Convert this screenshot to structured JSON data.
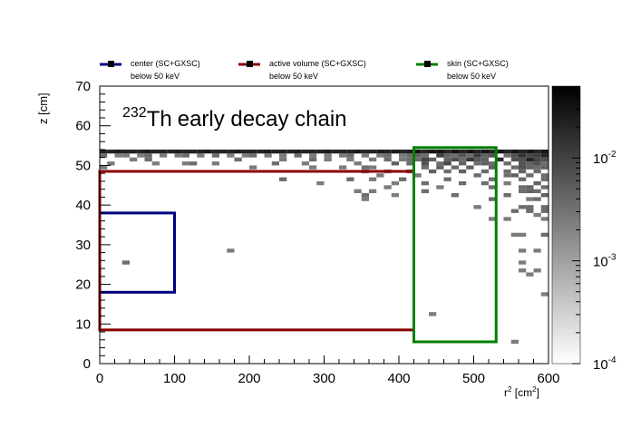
{
  "chart_data": {
    "type": "heatmap",
    "title": "early decay chain",
    "title_superscript": "232",
    "title_element": "Th",
    "xlabel": {
      "base": "r",
      "sup1": "2",
      "mid": " [cm",
      "sup2": "2",
      "end": "]"
    },
    "ylabel": "z [cm]",
    "xlim": [
      0,
      600
    ],
    "ylim": [
      0,
      70
    ],
    "x_ticks": [
      0,
      100,
      200,
      300,
      400,
      500,
      600
    ],
    "y_ticks": [
      0,
      10,
      20,
      30,
      40,
      50,
      60,
      70
    ],
    "colorbar": {
      "scale": "log",
      "range": [
        0.0001,
        0.05
      ],
      "ticks": [
        {
          "value": 0.01,
          "base": "10",
          "exp": "-2"
        },
        {
          "value": 0.001,
          "base": "10",
          "exp": "-3"
        },
        {
          "value": 0.0001,
          "base": "10",
          "exp": "-4"
        }
      ],
      "colormap": [
        "#ffffff",
        "#000000"
      ]
    },
    "legend": {
      "placement": "top",
      "entries": [
        {
          "name": "center (SC+GXSC)",
          "sub": "below 50 keV",
          "color": "#000080"
        },
        {
          "name": "active volume (SC+GXSC)",
          "sub": "below 50 keV",
          "color": "#8b0000"
        },
        {
          "name": "skin (SC+GXSC)",
          "sub": "below 50 keV",
          "color": "#008000"
        }
      ]
    },
    "regions": [
      {
        "name": "center (SC+GXSC)",
        "color": "#000080",
        "r2": [
          0,
          100
        ],
        "z": [
          18,
          38
        ]
      },
      {
        "name": "active volume (SC+GXSC)",
        "color": "#8b0000",
        "r2": [
          0,
          420
        ],
        "z": [
          8.5,
          48.5
        ]
      },
      {
        "name": "skin (SC+GXSC)",
        "color": "#008000",
        "r2": [
          420,
          530
        ],
        "z": [
          5.5,
          54.5
        ]
      }
    ],
    "bin_size": {
      "r2": 10,
      "z": 1
    },
    "bins": [
      [
        0,
        53,
        0.02
      ],
      [
        10,
        53,
        0.02
      ],
      [
        20,
        53,
        0.025
      ],
      [
        30,
        53,
        0.02
      ],
      [
        40,
        53,
        0.02
      ],
      [
        50,
        53,
        0.02
      ],
      [
        60,
        53,
        0.025
      ],
      [
        70,
        53,
        0.02
      ],
      [
        80,
        53,
        0.02
      ],
      [
        90,
        53,
        0.02
      ],
      [
        100,
        53,
        0.025
      ],
      [
        110,
        53,
        0.02
      ],
      [
        120,
        53,
        0.02
      ],
      [
        130,
        53,
        0.02
      ],
      [
        140,
        53,
        0.025
      ],
      [
        150,
        53,
        0.02
      ],
      [
        160,
        53,
        0.02
      ],
      [
        170,
        53,
        0.02
      ],
      [
        180,
        53,
        0.025
      ],
      [
        190,
        53,
        0.02
      ],
      [
        200,
        53,
        0.02
      ],
      [
        210,
        53,
        0.02
      ],
      [
        220,
        53,
        0.025
      ],
      [
        230,
        53,
        0.02
      ],
      [
        240,
        53,
        0.02
      ],
      [
        250,
        53,
        0.02
      ],
      [
        260,
        53,
        0.025
      ],
      [
        270,
        53,
        0.02
      ],
      [
        280,
        53,
        0.02
      ],
      [
        290,
        53,
        0.02
      ],
      [
        300,
        53,
        0.025
      ],
      [
        310,
        53,
        0.02
      ],
      [
        320,
        53,
        0.02
      ],
      [
        330,
        53,
        0.02
      ],
      [
        340,
        53,
        0.025
      ],
      [
        350,
        53,
        0.02
      ],
      [
        360,
        53,
        0.02
      ],
      [
        370,
        53,
        0.025
      ],
      [
        380,
        53,
        0.02
      ],
      [
        390,
        53,
        0.025
      ],
      [
        400,
        53,
        0.02
      ],
      [
        410,
        53,
        0.025
      ],
      [
        420,
        53,
        0.03
      ],
      [
        430,
        53,
        0.02
      ],
      [
        440,
        53,
        0.03
      ],
      [
        450,
        53,
        0.03
      ],
      [
        460,
        53,
        0.02
      ],
      [
        470,
        53,
        0.03
      ],
      [
        480,
        53,
        0.02
      ],
      [
        490,
        53,
        0.03
      ],
      [
        500,
        53,
        0.02
      ],
      [
        510,
        53,
        0.03
      ],
      [
        520,
        53,
        0.02
      ],
      [
        530,
        53,
        0.03
      ],
      [
        540,
        53,
        0.02
      ],
      [
        550,
        53,
        0.03
      ],
      [
        560,
        53,
        0.02
      ],
      [
        570,
        53,
        0.03
      ],
      [
        580,
        53,
        0.02
      ],
      [
        590,
        53,
        0.03
      ],
      [
        0,
        52,
        0.003
      ],
      [
        20,
        52,
        0.002
      ],
      [
        30,
        52,
        0.002
      ],
      [
        50,
        52,
        0.002
      ],
      [
        60,
        52,
        0.003
      ],
      [
        80,
        52,
        0.002
      ],
      [
        100,
        52,
        0.002
      ],
      [
        110,
        52,
        0.003
      ],
      [
        130,
        52,
        0.002
      ],
      [
        150,
        52,
        0.003
      ],
      [
        170,
        52,
        0.002
      ],
      [
        190,
        52,
        0.002
      ],
      [
        200,
        52,
        0.003
      ],
      [
        220,
        52,
        0.002
      ],
      [
        240,
        52,
        0.002
      ],
      [
        260,
        52,
        0.003
      ],
      [
        280,
        52,
        0.002
      ],
      [
        300,
        52,
        0.002
      ],
      [
        320,
        52,
        0.002
      ],
      [
        330,
        52,
        0.003
      ],
      [
        350,
        52,
        0.002
      ],
      [
        370,
        52,
        0.002
      ],
      [
        380,
        52,
        0.003
      ],
      [
        400,
        52,
        0.002
      ],
      [
        410,
        52,
        0.003
      ],
      [
        420,
        52,
        0.004
      ],
      [
        430,
        52,
        0.003
      ],
      [
        450,
        52,
        0.01
      ],
      [
        460,
        52,
        0.004
      ],
      [
        470,
        52,
        0.003
      ],
      [
        480,
        52,
        0.006
      ],
      [
        490,
        52,
        0.003
      ],
      [
        500,
        52,
        0.01
      ],
      [
        510,
        52,
        0.004
      ],
      [
        520,
        52,
        0.006
      ],
      [
        540,
        52,
        0.003
      ],
      [
        550,
        52,
        0.006
      ],
      [
        560,
        52,
        0.015
      ],
      [
        570,
        52,
        0.008
      ],
      [
        580,
        52,
        0.01
      ],
      [
        590,
        52,
        0.02
      ],
      [
        40,
        51,
        0.002
      ],
      [
        60,
        51,
        0.003
      ],
      [
        180,
        51,
        0.003
      ],
      [
        240,
        51,
        0.002
      ],
      [
        280,
        51,
        0.003
      ],
      [
        300,
        51,
        0.002
      ],
      [
        330,
        51,
        0.002
      ],
      [
        360,
        51,
        0.002
      ],
      [
        380,
        51,
        0.003
      ],
      [
        400,
        51,
        0.002
      ],
      [
        410,
        51,
        0.003
      ],
      [
        420,
        51,
        0.003
      ],
      [
        430,
        51,
        0.008
      ],
      [
        440,
        51,
        0.004
      ],
      [
        460,
        51,
        0.004
      ],
      [
        470,
        51,
        0.006
      ],
      [
        480,
        51,
        0.003
      ],
      [
        490,
        51,
        0.012
      ],
      [
        500,
        51,
        0.005
      ],
      [
        510,
        51,
        0.004
      ],
      [
        530,
        51,
        0.015
      ],
      [
        550,
        51,
        0.006
      ],
      [
        560,
        51,
        0.006
      ],
      [
        570,
        51,
        0.02
      ],
      [
        580,
        51,
        0.008
      ],
      [
        590,
        51,
        0.006
      ],
      [
        10,
        50,
        0.002
      ],
      [
        70,
        50,
        0.002
      ],
      [
        110,
        50,
        0.002
      ],
      [
        120,
        50,
        0.003
      ],
      [
        150,
        50,
        0.002
      ],
      [
        230,
        50,
        0.003
      ],
      [
        270,
        50,
        0.002
      ],
      [
        340,
        50,
        0.002
      ],
      [
        390,
        50,
        0.004
      ],
      [
        410,
        50,
        0.003
      ],
      [
        430,
        50,
        0.006
      ],
      [
        450,
        50,
        0.003
      ],
      [
        460,
        50,
        0.008
      ],
      [
        480,
        50,
        0.004
      ],
      [
        500,
        50,
        0.003
      ],
      [
        510,
        50,
        0.004
      ],
      [
        520,
        50,
        0.003
      ],
      [
        540,
        50,
        0.003
      ],
      [
        560,
        50,
        0.006
      ],
      [
        570,
        50,
        0.004
      ],
      [
        580,
        50,
        0.006
      ],
      [
        590,
        50,
        0.003
      ],
      [
        0,
        49,
        0.002
      ],
      [
        200,
        49,
        0.002
      ],
      [
        280,
        49,
        0.002
      ],
      [
        320,
        49,
        0.002
      ],
      [
        350,
        49,
        0.003
      ],
      [
        360,
        49,
        0.002
      ],
      [
        430,
        49,
        0.003
      ],
      [
        450,
        49,
        0.004
      ],
      [
        470,
        49,
        0.003
      ],
      [
        490,
        49,
        0.004
      ],
      [
        520,
        49,
        0.004
      ],
      [
        550,
        49,
        0.003
      ],
      [
        560,
        49,
        0.006
      ],
      [
        570,
        49,
        0.004
      ],
      [
        580,
        49,
        0.003
      ],
      [
        590,
        49,
        0.004
      ],
      [
        350,
        48,
        0.002
      ],
      [
        380,
        48,
        0.002
      ],
      [
        410,
        48,
        0.003
      ],
      [
        440,
        48,
        0.004
      ],
      [
        460,
        48,
        0.003
      ],
      [
        480,
        48,
        0.004
      ],
      [
        510,
        48,
        0.003
      ],
      [
        540,
        48,
        0.003
      ],
      [
        560,
        48,
        0.004
      ],
      [
        580,
        48,
        0.003
      ],
      [
        370,
        47,
        0.002
      ],
      [
        420,
        47,
        0.002
      ],
      [
        500,
        47,
        0.003
      ],
      [
        540,
        47,
        0.003
      ],
      [
        550,
        47,
        0.004
      ],
      [
        570,
        47,
        0.003
      ],
      [
        590,
        47,
        0.003
      ],
      [
        240,
        46,
        0.003
      ],
      [
        330,
        46,
        0.003
      ],
      [
        360,
        46,
        0.002
      ],
      [
        400,
        46,
        0.003
      ],
      [
        460,
        46,
        0.003
      ],
      [
        520,
        46,
        0.003
      ],
      [
        560,
        46,
        0.003
      ],
      [
        590,
        46,
        0.003
      ],
      [
        290,
        45,
        0.002
      ],
      [
        390,
        45,
        0.002
      ],
      [
        430,
        45,
        0.003
      ],
      [
        480,
        45,
        0.003
      ],
      [
        510,
        45,
        0.003
      ],
      [
        540,
        45,
        0.002
      ],
      [
        580,
        45,
        0.004
      ],
      [
        380,
        44,
        0.002
      ],
      [
        450,
        44,
        0.002
      ],
      [
        520,
        44,
        0.003
      ],
      [
        560,
        44,
        0.003
      ],
      [
        570,
        44,
        0.004
      ],
      [
        590,
        44,
        0.003
      ],
      [
        340,
        43,
        0.002
      ],
      [
        360,
        43,
        0.002
      ],
      [
        430,
        43,
        0.003
      ],
      [
        560,
        43,
        0.003
      ],
      [
        570,
        43,
        0.004
      ],
      [
        580,
        43,
        0.003
      ],
      [
        350,
        42,
        0.003
      ],
      [
        390,
        42,
        0.002
      ],
      [
        470,
        42,
        0.003
      ],
      [
        540,
        42,
        0.003
      ],
      [
        590,
        42,
        0.004
      ],
      [
        350,
        41,
        0.002
      ],
      [
        520,
        41,
        0.003
      ],
      [
        570,
        41,
        0.002
      ],
      [
        580,
        41,
        0.003
      ],
      [
        500,
        39,
        0.002
      ],
      [
        560,
        39,
        0.003
      ],
      [
        570,
        39,
        0.003
      ],
      [
        590,
        39,
        0.003
      ],
      [
        550,
        38,
        0.003
      ],
      [
        570,
        38,
        0.003
      ],
      [
        590,
        38,
        0.003
      ],
      [
        580,
        37,
        0.002
      ],
      [
        520,
        36,
        0.002
      ],
      [
        540,
        36,
        0.002
      ],
      [
        590,
        36,
        0.002
      ],
      [
        550,
        32,
        0.002
      ],
      [
        560,
        32,
        0.002
      ],
      [
        590,
        32,
        0.003
      ],
      [
        170,
        28,
        0.002
      ],
      [
        560,
        28,
        0.002
      ],
      [
        580,
        28,
        0.002
      ],
      [
        30,
        25,
        0.003
      ],
      [
        560,
        25,
        0.002
      ],
      [
        560,
        23,
        0.002
      ],
      [
        580,
        23,
        0.002
      ],
      [
        570,
        22,
        0.002
      ],
      [
        590,
        17,
        0.002
      ],
      [
        440,
        12,
        0.002
      ],
      [
        550,
        5,
        0.002
      ]
    ]
  }
}
